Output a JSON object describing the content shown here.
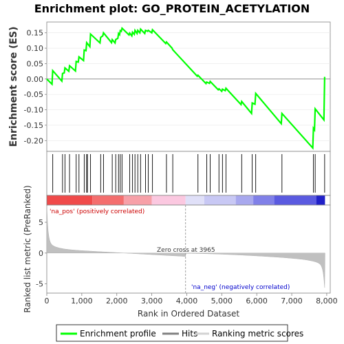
{
  "chart_data": {
    "type": "line",
    "title": "Enrichment plot: GO_PROTEIN_ACETYLATION",
    "top_panel": {
      "ylabel": "Enrichment score (ES)",
      "ylim": [
        -0.235,
        0.185
      ],
      "yticks": [
        -0.2,
        -0.15,
        -0.1,
        -0.05,
        0.0,
        0.05,
        0.1,
        0.15
      ],
      "ytick_labels": [
        "-0.20",
        "-0.15",
        "-0.10",
        "-0.05",
        "0.00",
        "0.05",
        "0.10",
        "0.15"
      ],
      "series": [
        {
          "name": "Enrichment profile",
          "color": "#00ff00",
          "x": [
            0,
            150,
            170,
            430,
            450,
            500,
            520,
            630,
            650,
            820,
            840,
            900,
            920,
            1050,
            1070,
            1120,
            1140,
            1230,
            1250,
            1520,
            1540,
            1600,
            1620,
            1850,
            1870,
            1950,
            1970,
            2030,
            2050,
            2080,
            2100,
            2130,
            2150,
            2350,
            2370,
            2430,
            2450,
            2500,
            2520,
            2580,
            2600,
            2660,
            2680,
            2800,
            2820,
            2880,
            2900,
            3000,
            3020,
            3400,
            3420,
            3580,
            3600,
            4300,
            4320,
            4550,
            4570,
            4650,
            4670,
            4900,
            4920,
            5000,
            5020,
            5100,
            5120,
            5550,
            5570,
            5850,
            5870,
            5950,
            5970,
            6700,
            6720,
            7600,
            7620,
            7650,
            7670,
            7920,
            7940
          ],
          "y": [
            0.0,
            -0.017,
            0.027,
            -0.007,
            0.018,
            0.02,
            0.036,
            0.025,
            0.043,
            0.026,
            0.057,
            0.055,
            0.072,
            0.06,
            0.094,
            0.092,
            0.118,
            0.105,
            0.146,
            0.117,
            0.135,
            0.14,
            0.15,
            0.118,
            0.128,
            0.117,
            0.128,
            0.132,
            0.148,
            0.144,
            0.157,
            0.155,
            0.165,
            0.143,
            0.149,
            0.14,
            0.152,
            0.145,
            0.158,
            0.148,
            0.158,
            0.15,
            0.162,
            0.148,
            0.158,
            0.155,
            0.158,
            0.15,
            0.16,
            0.115,
            0.12,
            0.1,
            0.095,
            0.009,
            0.012,
            -0.015,
            -0.01,
            -0.014,
            -0.008,
            -0.035,
            -0.032,
            -0.04,
            -0.033,
            -0.038,
            -0.03,
            -0.083,
            -0.073,
            -0.112,
            -0.078,
            -0.082,
            -0.047,
            -0.145,
            -0.112,
            -0.224,
            -0.16,
            -0.165,
            -0.097,
            -0.133,
            0.007
          ]
        }
      ]
    },
    "hits_panel": {
      "name": "Hits",
      "positions": [
        170,
        450,
        520,
        650,
        840,
        920,
        1070,
        1140,
        1160,
        1250,
        1540,
        1620,
        1870,
        1970,
        2050,
        2100,
        2150,
        2370,
        2450,
        2520,
        2600,
        2680,
        2820,
        2900,
        3020,
        3420,
        3600,
        4320,
        4570,
        4670,
        4920,
        5020,
        5120,
        5570,
        5870,
        5970,
        6720,
        7620,
        7670,
        7940
      ]
    },
    "ranking_panel": {
      "name": "Ranking metric scores",
      "ylabel": "Ranked list metric (PreRanked)",
      "ylim": [
        -6.5,
        7.8
      ],
      "yticks": [
        -5,
        0,
        5
      ],
      "ytick_labels": [
        "-5",
        "0",
        "5"
      ],
      "zero_cross_label": "Zero cross at 3965",
      "zero_cross": 3965,
      "pos_label": "'na_pos' (positively correlated)",
      "neg_label": "'na_neg' (negatively correlated)"
    },
    "xlabel": "Rank in Ordered Dataset",
    "xlim": [
      0,
      8100
    ],
    "xticks": [
      0,
      1000,
      2000,
      3000,
      4000,
      5000,
      6000,
      7000,
      8000
    ],
    "xtick_labels": [
      "0",
      "1,000",
      "2,000",
      "3,000",
      "4,000",
      "5,000",
      "6,000",
      "7,000",
      "8,000"
    ],
    "n_genes": 7950,
    "legend": {
      "placement": "bottom",
      "items": [
        {
          "label": "Enrichment profile",
          "color": "#00ff00"
        },
        {
          "label": "Hits",
          "color": "#808080"
        },
        {
          "label": "Ranking metric scores",
          "color": "#d3d3d3"
        }
      ]
    },
    "colors": {
      "profile": "#00ff00",
      "hits": "#000000",
      "ranking_fill": "#c0c0c0",
      "zero_line": "#a0a0a0",
      "pos_label": "#cc0000",
      "neg_label": "#0000cc"
    }
  }
}
